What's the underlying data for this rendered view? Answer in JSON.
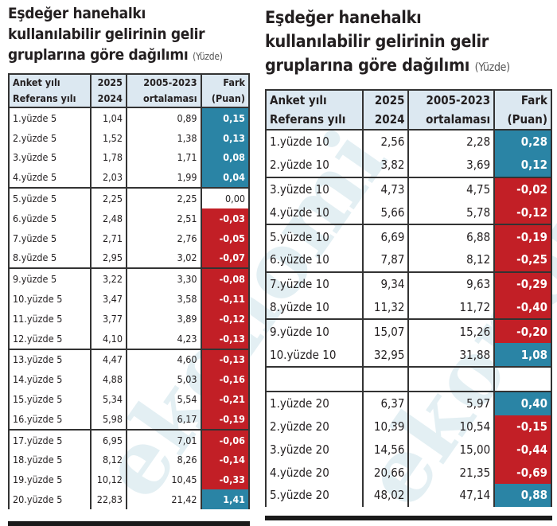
{
  "left": {
    "title_line1": "Eşdeğer hanehalkı",
    "title_line2": "kullanılabilir gelirinin gelir",
    "title_line3": "gruplarına göre dağılımı",
    "unit": "(Yüzde)",
    "headers": {
      "col1_line1": "Anket yılı",
      "col1_line2": "Referans yılı",
      "col2_line1": "2025",
      "col2_line2": "2024",
      "col3_line1": "2005-2023",
      "col3_line2": "ortalaması",
      "col4_line1": "Fark",
      "col4_line2": "(Puan)"
    },
    "rows": [
      [
        "1.yüzde 5",
        "1,04",
        "0,89",
        "0,15"
      ],
      [
        "2.yüzde 5",
        "1,52",
        "1,38",
        "0,13"
      ],
      [
        "3.yüzde 5",
        "1,78",
        "1,71",
        "0,08"
      ],
      [
        "4.yüzde 5",
        "2,03",
        "1,99",
        "0,04"
      ],
      [
        "5.yüzde 5",
        "2,25",
        "2,25",
        "0,00"
      ],
      [
        "6.yüzde 5",
        "2,48",
        "2,51",
        "-0,03"
      ],
      [
        "7.yüzde 5",
        "2,71",
        "2,76",
        "-0,05"
      ],
      [
        "8.yüzde 5",
        "2,95",
        "3,02",
        "-0,07"
      ],
      [
        "9.yüzde 5",
        "3,22",
        "3,30",
        "-0,08"
      ],
      [
        "10.yüzde 5",
        "3,47",
        "3,58",
        "-0,11"
      ],
      [
        "11.yüzde 5",
        "3,77",
        "3,89",
        "-0,12"
      ],
      [
        "12.yüzde 5",
        "4,10",
        "4,23",
        "-0,13"
      ],
      [
        "13.yüzde 5",
        "4,47",
        "4,60",
        "-0,13"
      ],
      [
        "14.yüzde 5",
        "4,88",
        "5,03",
        "-0,16"
      ],
      [
        "15.yüzde 5",
        "5,34",
        "5,54",
        "-0,21"
      ],
      [
        "16.yüzde 5",
        "5,98",
        "6,17",
        "-0,19"
      ],
      [
        "17.yüzde 5",
        "6,95",
        "7,01",
        "-0,06"
      ],
      [
        "18.yüzde 5",
        "8,12",
        "8,26",
        "-0,14"
      ],
      [
        "19.yüzde 5",
        "10,12",
        "10,45",
        "-0,33"
      ],
      [
        "20.yüzde 5",
        "22,83",
        "21,42",
        "1,41"
      ]
    ]
  },
  "right": {
    "title_line1": "Eşdeğer hanehalkı",
    "title_line2": "kullanılabilir gelirinin gelir",
    "title_line3": "gruplarına göre dağılımı",
    "unit": "(Yüzde)",
    "headers": {
      "col1_line1": "Anket yılı",
      "col1_line2": "Referans yılı",
      "col2_line1": "2025",
      "col2_line2": "2024",
      "col3_line1": "2005-2023",
      "col3_line2": "ortalaması",
      "col4_line1": "Fark",
      "col4_line2": "(Puan)"
    },
    "rows": [
      [
        "1.yüzde 10",
        "2,56",
        "2,28",
        "0,28"
      ],
      [
        "2.yüzde 10",
        "3,82",
        "3,69",
        "0,12"
      ],
      [
        "3.yüzde 10",
        "4,73",
        "4,75",
        "-0,02"
      ],
      [
        "4.yüzde 10",
        "5,66",
        "5,78",
        "-0,12"
      ],
      [
        "5.yüzde 10",
        "6,69",
        "6,88",
        "-0,19"
      ],
      [
        "6.yüzde 10",
        "7,87",
        "8,12",
        "-0,25"
      ],
      [
        "7.yüzde 10",
        "9,34",
        "9,63",
        "-0,29"
      ],
      [
        "8.yüzde 10",
        "11,32",
        "11,72",
        "-0,40"
      ],
      [
        "9.yüzde 10",
        "15,07",
        "15,26",
        "-0,20"
      ],
      [
        "10.yüzde 10",
        "32,95",
        "31,88",
        "1,08"
      ]
    ],
    "rows2": [
      [
        "1.yüzde 20",
        "6,37",
        "5,97",
        "0,40"
      ],
      [
        "2.yüzde 20",
        "10,39",
        "10,54",
        "-0,15"
      ],
      [
        "3.yüzde 20",
        "14,56",
        "15,00",
        "-0,44"
      ],
      [
        "4.yüzde 20",
        "20,66",
        "21,35",
        "-0,69"
      ],
      [
        "5.yüzde 20",
        "48,02",
        "47,14",
        "0,88"
      ]
    ]
  },
  "colors": {
    "positive": "#2a84a5",
    "negative": "#c21f26",
    "header_bg": "#dce8f1"
  }
}
